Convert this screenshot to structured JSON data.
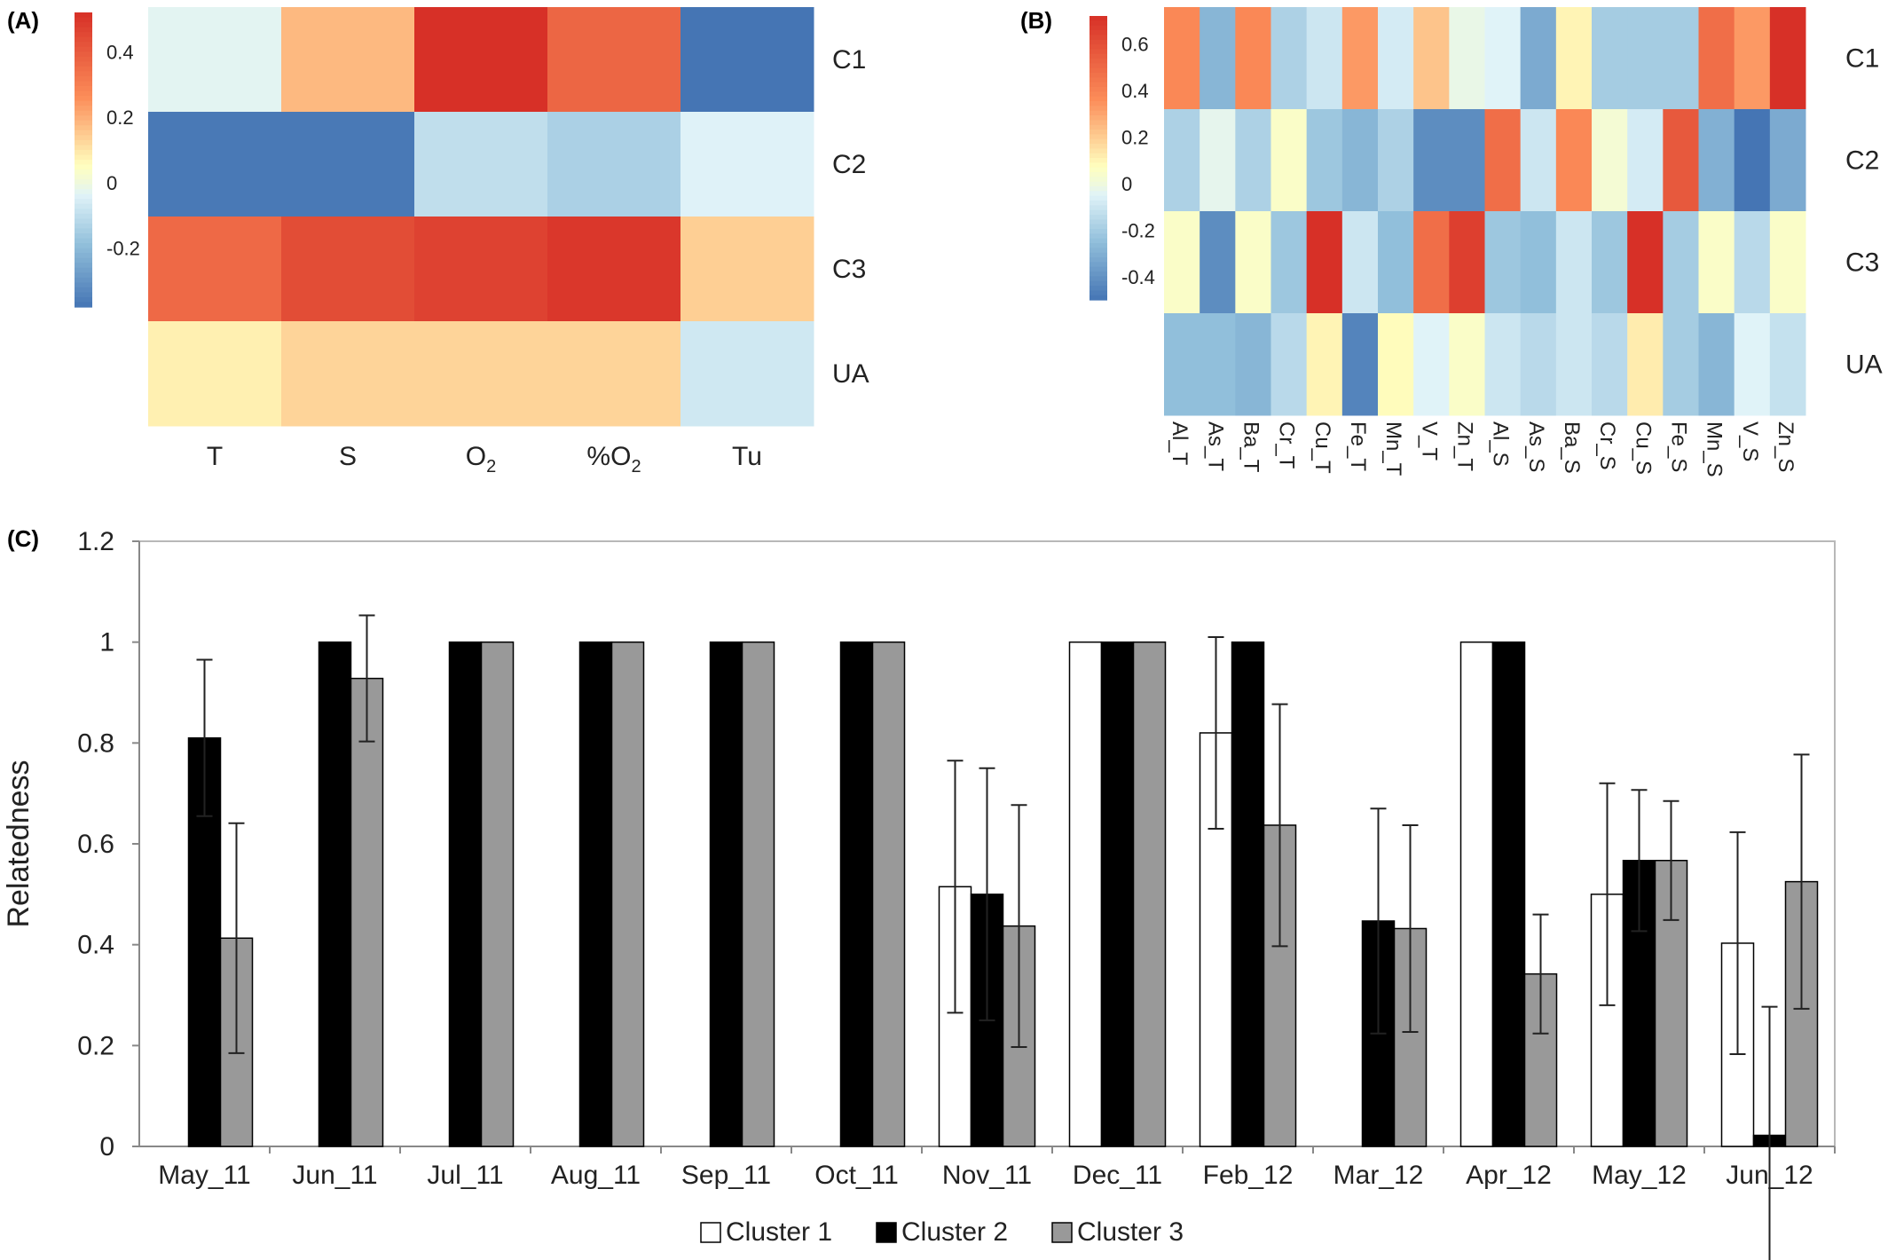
{
  "panels": {
    "a_label": "(A)",
    "b_label": "(B)",
    "c_label": "(C)"
  },
  "chart_data": [
    {
      "type": "heatmap",
      "panel": "(A)",
      "rows": [
        "C1",
        "C2",
        "C3",
        "UA"
      ],
      "columns": [
        {
          "base": "T",
          "sub": ""
        },
        {
          "base": "S",
          "sub": ""
        },
        {
          "base": "O",
          "sub": "2"
        },
        {
          "base": "%O",
          "sub": "2"
        },
        {
          "base": "Tu",
          "sub": ""
        }
      ],
      "values": [
        [
          -0.03,
          0.18,
          0.52,
          0.37,
          -0.38
        ],
        [
          -0.37,
          -0.37,
          -0.1,
          -0.14,
          -0.04
        ],
        [
          0.36,
          0.44,
          0.47,
          0.5,
          0.14
        ],
        [
          0.08,
          0.13,
          0.13,
          0.13,
          -0.07
        ]
      ],
      "colorbar": {
        "range": [
          -0.38,
          0.52
        ],
        "ticks": [
          -0.2,
          0,
          0.2,
          0.4
        ],
        "tick_labels": [
          "-0.2",
          "0",
          "0.2",
          "0.4"
        ]
      }
    },
    {
      "type": "heatmap",
      "panel": "(B)",
      "rows": [
        "C1",
        "C2",
        "C3",
        "UA"
      ],
      "columns": [
        "Al_T",
        "As_T",
        "Ba_T",
        "Cr_T",
        "Cu_T",
        "Fe_T",
        "Mn_T",
        "V_T",
        "Zn_T",
        "Al_S",
        "As_S",
        "Ba_S",
        "Cr_S",
        "Cu_S",
        "Fe_S",
        "Mn_S",
        "V_S",
        "Zn_S"
      ],
      "values": [
        [
          0.38,
          -0.28,
          0.38,
          -0.18,
          -0.1,
          0.33,
          -0.08,
          0.22,
          -0.02,
          -0.05,
          -0.32,
          0.1,
          -0.2,
          -0.2,
          -0.2,
          0.48,
          0.33,
          0.72
        ],
        [
          -0.18,
          -0.03,
          -0.18,
          0.05,
          -0.22,
          -0.28,
          -0.18,
          -0.42,
          -0.42,
          0.48,
          -0.1,
          0.38,
          0.02,
          -0.08,
          0.56,
          -0.3,
          -0.5,
          -0.32
        ],
        [
          0.05,
          -0.42,
          0.05,
          -0.22,
          0.72,
          -0.1,
          -0.25,
          0.48,
          0.66,
          -0.22,
          -0.25,
          -0.1,
          -0.22,
          0.72,
          -0.2,
          0.05,
          -0.15,
          0.05
        ],
        [
          -0.25,
          -0.25,
          -0.28,
          -0.15,
          0.1,
          -0.45,
          0.08,
          -0.05,
          0.05,
          -0.1,
          -0.15,
          -0.1,
          -0.15,
          0.12,
          -0.2,
          -0.28,
          -0.05,
          -0.12
        ]
      ],
      "colorbar": {
        "range": [
          -0.5,
          0.72
        ],
        "ticks": [
          -0.4,
          -0.2,
          0,
          0.2,
          0.4,
          0.6
        ],
        "tick_labels": [
          "-0.4",
          "-0.2",
          "0",
          "0.2",
          "0.4",
          "0.6"
        ]
      }
    },
    {
      "type": "bar",
      "panel": "(C)",
      "ylabel": "Relatedness",
      "ylim": [
        0,
        1.2
      ],
      "yticks": [
        0,
        0.2,
        0.4,
        0.6,
        0.8,
        1,
        1.2
      ],
      "ytick_labels": [
        "0",
        "0.2",
        "0.4",
        "0.6",
        "0.8",
        "1",
        "1.2"
      ],
      "categories": [
        "May_11",
        "Jun_11",
        "Jul_11",
        "Aug_11",
        "Sep_11",
        "Oct_11",
        "Nov_11",
        "Dec_11",
        "Feb_12",
        "Mar_12",
        "Apr_12",
        "May_12",
        "Jun_12"
      ],
      "series": [
        {
          "name": "Cluster 1",
          "color": "#ffffff",
          "values": [
            null,
            null,
            null,
            null,
            null,
            null,
            0.515,
            1.0,
            0.82,
            null,
            1.0,
            0.5,
            0.403
          ],
          "errors": [
            null,
            null,
            null,
            null,
            null,
            null,
            0.25,
            null,
            0.19,
            null,
            null,
            0.22,
            0.22
          ]
        },
        {
          "name": "Cluster 2",
          "color": "#000000",
          "values": [
            0.81,
            1.0,
            1.0,
            1.0,
            1.0,
            1.0,
            0.5,
            1.0,
            1.0,
            0.447,
            1.0,
            0.567,
            0.022
          ],
          "errors": [
            0.155,
            null,
            null,
            null,
            null,
            null,
            0.25,
            null,
            null,
            0.223,
            null,
            0.14,
            0.255
          ]
        },
        {
          "name": "Cluster 3",
          "color": "#999999",
          "values": [
            0.413,
            0.928,
            1.0,
            1.0,
            1.0,
            1.0,
            0.437,
            1.0,
            0.637,
            0.432,
            0.342,
            0.567,
            0.525
          ],
          "errors": [
            0.228,
            0.125,
            null,
            null,
            null,
            null,
            0.24,
            null,
            0.24,
            0.205,
            0.118,
            0.118,
            0.252
          ]
        }
      ],
      "legend_position": "bottom-center",
      "grid": false
    }
  ]
}
